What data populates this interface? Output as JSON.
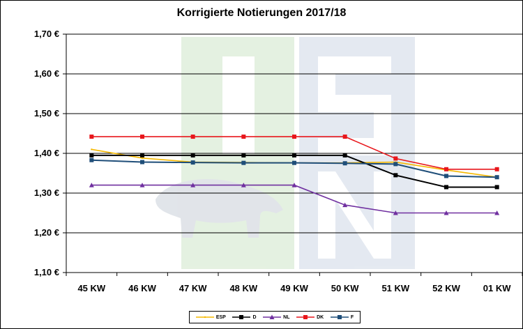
{
  "chart_data": {
    "type": "line",
    "title": "Korrigierte Notierungen 2017/18",
    "categories": [
      "45 KW",
      "46 KW",
      "47 KW",
      "48 KW",
      "49 KW",
      "50 KW",
      "51 KW",
      "52 KW",
      "01 KW"
    ],
    "ylim": [
      1.1,
      1.7
    ],
    "y_ticks": [
      1.1,
      1.2,
      1.3,
      1.4,
      1.5,
      1.6,
      1.7
    ],
    "y_tick_labels": [
      "1,10 €",
      "1,20 €",
      "1,30 €",
      "1,40 €",
      "1,50 €",
      "1,60 €",
      "1,70 €"
    ],
    "grid": "horizontal",
    "legend_position": "bottom",
    "watermark": "ISN",
    "series": [
      {
        "name": "ESP",
        "color": "#f5b800",
        "marker": "none",
        "values": [
          1.41,
          1.388,
          1.378,
          1.377,
          1.376,
          1.376,
          1.378,
          1.358,
          1.34
        ]
      },
      {
        "name": "D",
        "color": "#000000",
        "marker": "square",
        "values": [
          1.395,
          1.395,
          1.395,
          1.395,
          1.395,
          1.395,
          1.345,
          1.315,
          1.315
        ]
      },
      {
        "name": "NL",
        "color": "#7030a0",
        "marker": "triangle",
        "values": [
          1.32,
          1.32,
          1.32,
          1.32,
          1.32,
          1.27,
          1.25,
          1.25,
          1.25
        ]
      },
      {
        "name": "DK",
        "color": "#e8161b",
        "marker": "square",
        "values": [
          1.442,
          1.442,
          1.442,
          1.442,
          1.442,
          1.442,
          1.387,
          1.36,
          1.36
        ]
      },
      {
        "name": "F",
        "color": "#1f4e79",
        "marker": "square",
        "values": [
          1.383,
          1.378,
          1.377,
          1.376,
          1.376,
          1.375,
          1.373,
          1.343,
          1.34
        ]
      }
    ]
  }
}
